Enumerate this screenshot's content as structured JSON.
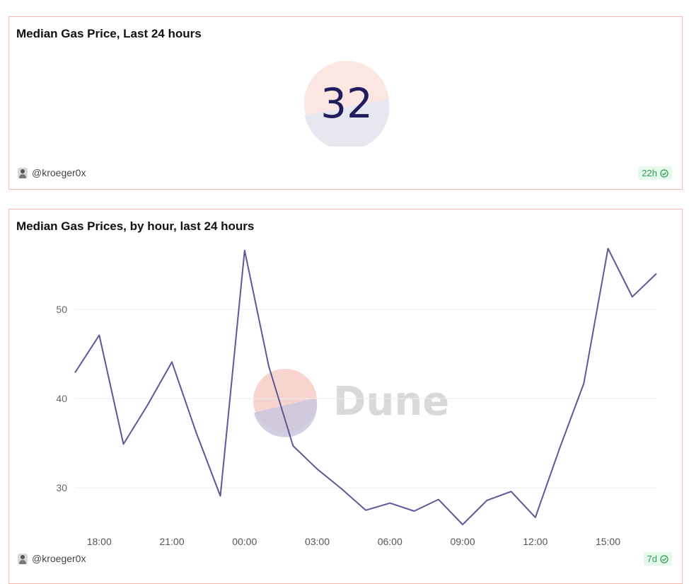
{
  "counter_card": {
    "title": "Median Gas Price, Last 24 hours",
    "value": "32",
    "author": "@kroeger0x",
    "refresh": "22h"
  },
  "chart_card": {
    "title": "Median Gas Prices, by hour, last 24 hours",
    "author": "@kroeger0x",
    "refresh": "7d",
    "watermark": "Dune"
  },
  "colors": {
    "line": "#5c5898",
    "border": "#f3b8a8",
    "counter_top": "#fbe6e1",
    "counter_bottom": "#e7e7ef",
    "badge_text": "#2e9e55"
  },
  "chart_data": {
    "type": "line",
    "title": "Median Gas Prices, by hour, last 24 hours",
    "xlabel": "",
    "ylabel": "",
    "x": [
      "17:00",
      "18:00",
      "19:00",
      "20:00",
      "21:00",
      "22:00",
      "23:00",
      "00:00",
      "01:00",
      "02:00",
      "03:00",
      "04:00",
      "05:00",
      "06:00",
      "07:00",
      "08:00",
      "09:00",
      "10:00",
      "11:00",
      "12:00",
      "13:00",
      "14:00",
      "15:00",
      "16:00",
      "17:00"
    ],
    "xtick_labels": [
      "18:00",
      "21:00",
      "00:00",
      "03:00",
      "06:00",
      "09:00",
      "12:00",
      "15:00"
    ],
    "yticks": [
      30,
      40,
      50
    ],
    "ylim": [
      25.5,
      58
    ],
    "series": [
      {
        "values": [
          42.9,
          47.1,
          34.9,
          39.3,
          44.1,
          36.2,
          29.1,
          56.6,
          43.6,
          34.7,
          32.1,
          29.9,
          27.5,
          28.3,
          27.4,
          28.7,
          25.9,
          28.6,
          29.6,
          26.7,
          34.4,
          41.7,
          56.8,
          51.4,
          54.0
        ]
      }
    ],
    "grid": true,
    "legend": "none"
  }
}
